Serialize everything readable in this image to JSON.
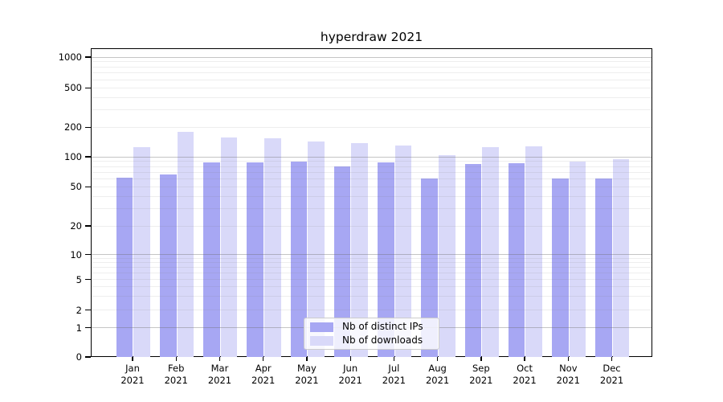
{
  "title": "hyperdraw 2021",
  "chart_data": {
    "type": "bar",
    "title": "hyperdraw 2021",
    "categories": [
      "Jan",
      "Feb",
      "Mar",
      "Apr",
      "May",
      "Jun",
      "Jul",
      "Aug",
      "Sep",
      "Oct",
      "Nov",
      "Dec"
    ],
    "year": "2021",
    "series": [
      {
        "name": "Nb of distinct IPs",
        "color": "#a7a7f3",
        "values": [
          62,
          66,
          88,
          87,
          90,
          80,
          87,
          60,
          84,
          86,
          60,
          61
        ]
      },
      {
        "name": "Nb of downloads",
        "color": "#d9d9f9",
        "values": [
          125,
          180,
          158,
          155,
          142,
          139,
          131,
          103,
          126,
          127,
          90,
          95
        ]
      }
    ],
    "xlabel": "",
    "ylabel": "",
    "yscale": "symlog",
    "yticks": [
      0,
      1,
      2,
      5,
      10,
      20,
      50,
      100,
      200,
      500,
      1000
    ],
    "ylim": [
      0,
      1200
    ],
    "grid": true,
    "legend_position": "bottom-center"
  }
}
